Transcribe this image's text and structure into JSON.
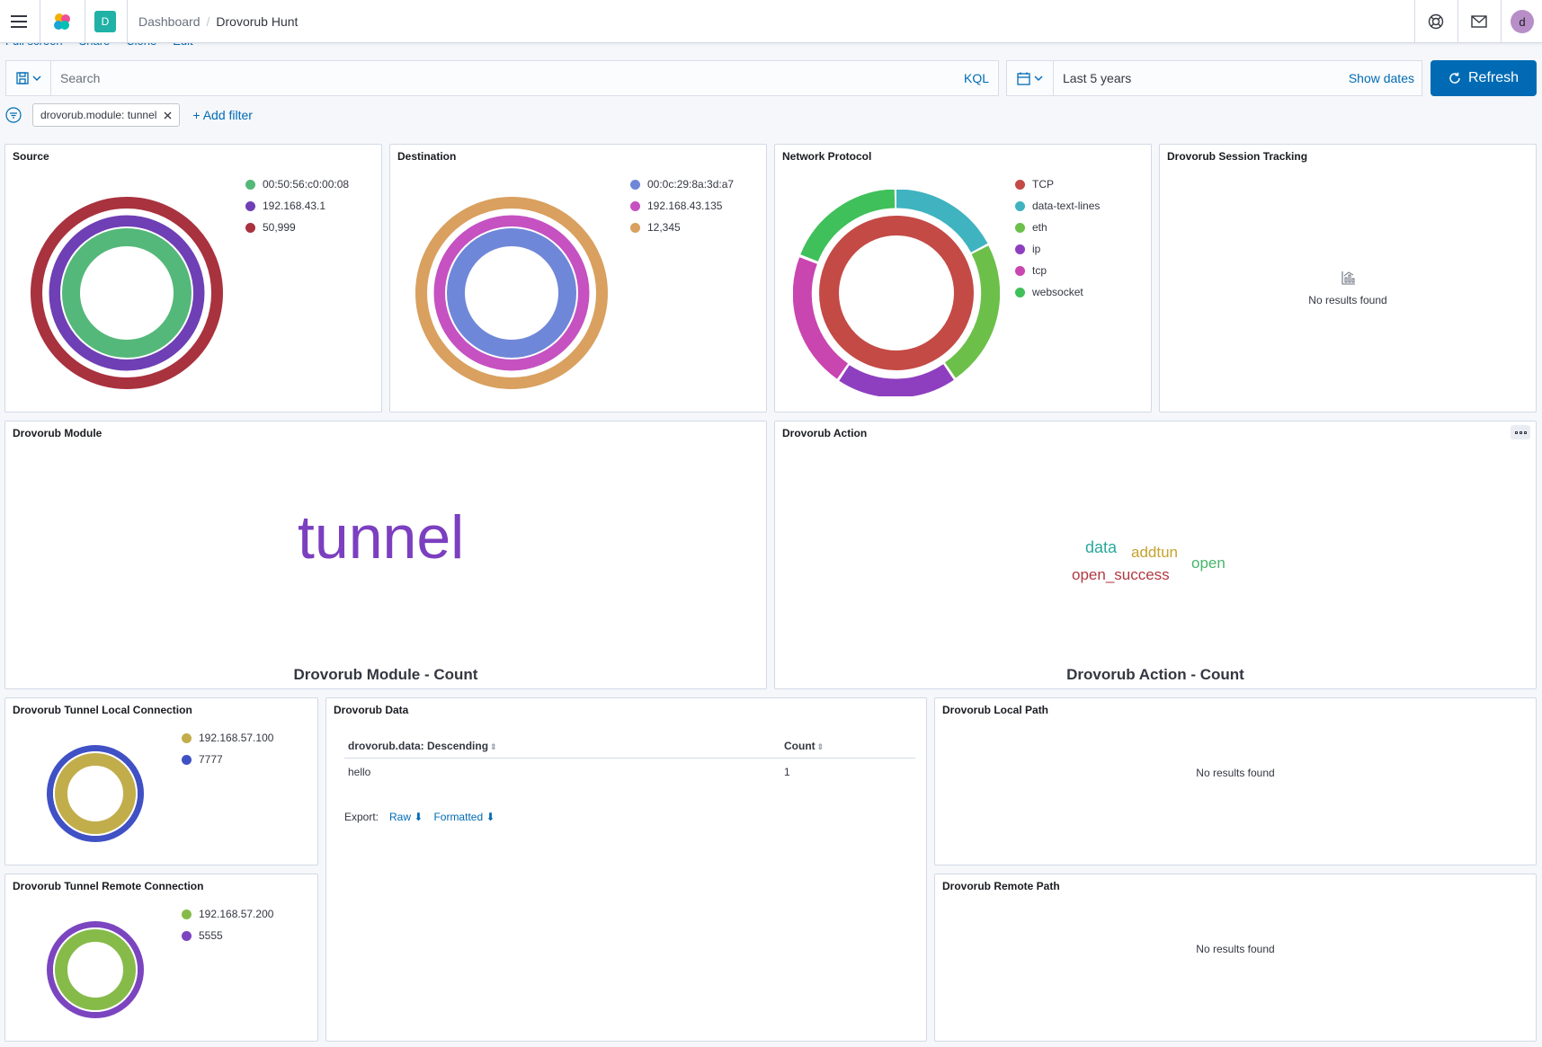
{
  "header": {
    "space_initial": "D",
    "breadcrumb_parent": "Dashboard",
    "breadcrumb_current": "Drovorub Hunt",
    "user_initial": "d"
  },
  "menu": [
    "Full screen",
    "Share",
    "Clone",
    "Edit"
  ],
  "query": {
    "placeholder": "Search",
    "language": "KQL",
    "time_range": "Last 5 years",
    "show_dates": "Show dates",
    "refresh": "Refresh"
  },
  "filters": {
    "pill": "drovorub.module: tunnel",
    "add": "+ Add filter"
  },
  "panels": {
    "source": {
      "title": "Source",
      "legend": [
        {
          "label": "00:50:56:c0:00:08",
          "color": "#54b87a"
        },
        {
          "label": "192.168.43.1",
          "color": "#6f3fb5"
        },
        {
          "label": "50,999",
          "color": "#a8323e"
        }
      ]
    },
    "destination": {
      "title": "Destination",
      "legend": [
        {
          "label": "00:0c:29:8a:3d:a7",
          "color": "#6f87d8"
        },
        {
          "label": "192.168.43.135",
          "color": "#c651c1"
        },
        {
          "label": "12,345",
          "color": "#d9a060"
        }
      ]
    },
    "protocol": {
      "title": "Network Protocol",
      "legend": [
        {
          "label": "TCP",
          "color": "#c44a45"
        },
        {
          "label": "data-text-lines",
          "color": "#3fb3c0"
        },
        {
          "label": "eth",
          "color": "#6cc04a"
        },
        {
          "label": "ip",
          "color": "#8e3fbf"
        },
        {
          "label": "tcp",
          "color": "#c945b0"
        },
        {
          "label": "websocket",
          "color": "#40c05a"
        }
      ]
    },
    "session": {
      "title": "Drovorub Session Tracking",
      "empty": "No results found"
    },
    "module": {
      "title": "Drovorub Module",
      "word": "tunnel",
      "caption": "Drovorub Module - Count"
    },
    "action": {
      "title": "Drovorub Action",
      "caption": "Drovorub Action - Count",
      "words": [
        {
          "text": "data",
          "color": "#2aa89b"
        },
        {
          "text": "addtun",
          "color": "#c4a32f"
        },
        {
          "text": "open",
          "color": "#45b56a"
        },
        {
          "text": "open_success",
          "color": "#b03a43"
        }
      ]
    },
    "local_conn": {
      "title": "Drovorub Tunnel Local Connection",
      "legend": [
        {
          "label": "192.168.57.100",
          "color": "#c2ad4b"
        },
        {
          "label": "7777",
          "color": "#3f51c4"
        }
      ]
    },
    "remote_conn": {
      "title": "Drovorub Tunnel Remote Connection",
      "legend": [
        {
          "label": "192.168.57.200",
          "color": "#86bb4a"
        },
        {
          "label": "5555",
          "color": "#7c45c0"
        }
      ]
    },
    "data": {
      "title": "Drovorub Data",
      "columns": [
        "drovorub.data: Descending",
        "Count"
      ],
      "rows": [
        [
          "hello",
          "1"
        ]
      ],
      "export_label": "Export:",
      "export_raw": "Raw",
      "export_formatted": "Formatted"
    },
    "local_path": {
      "title": "Drovorub Local Path",
      "empty": "No results found"
    },
    "remote_path": {
      "title": "Drovorub Remote Path",
      "empty": "No results found"
    }
  }
}
